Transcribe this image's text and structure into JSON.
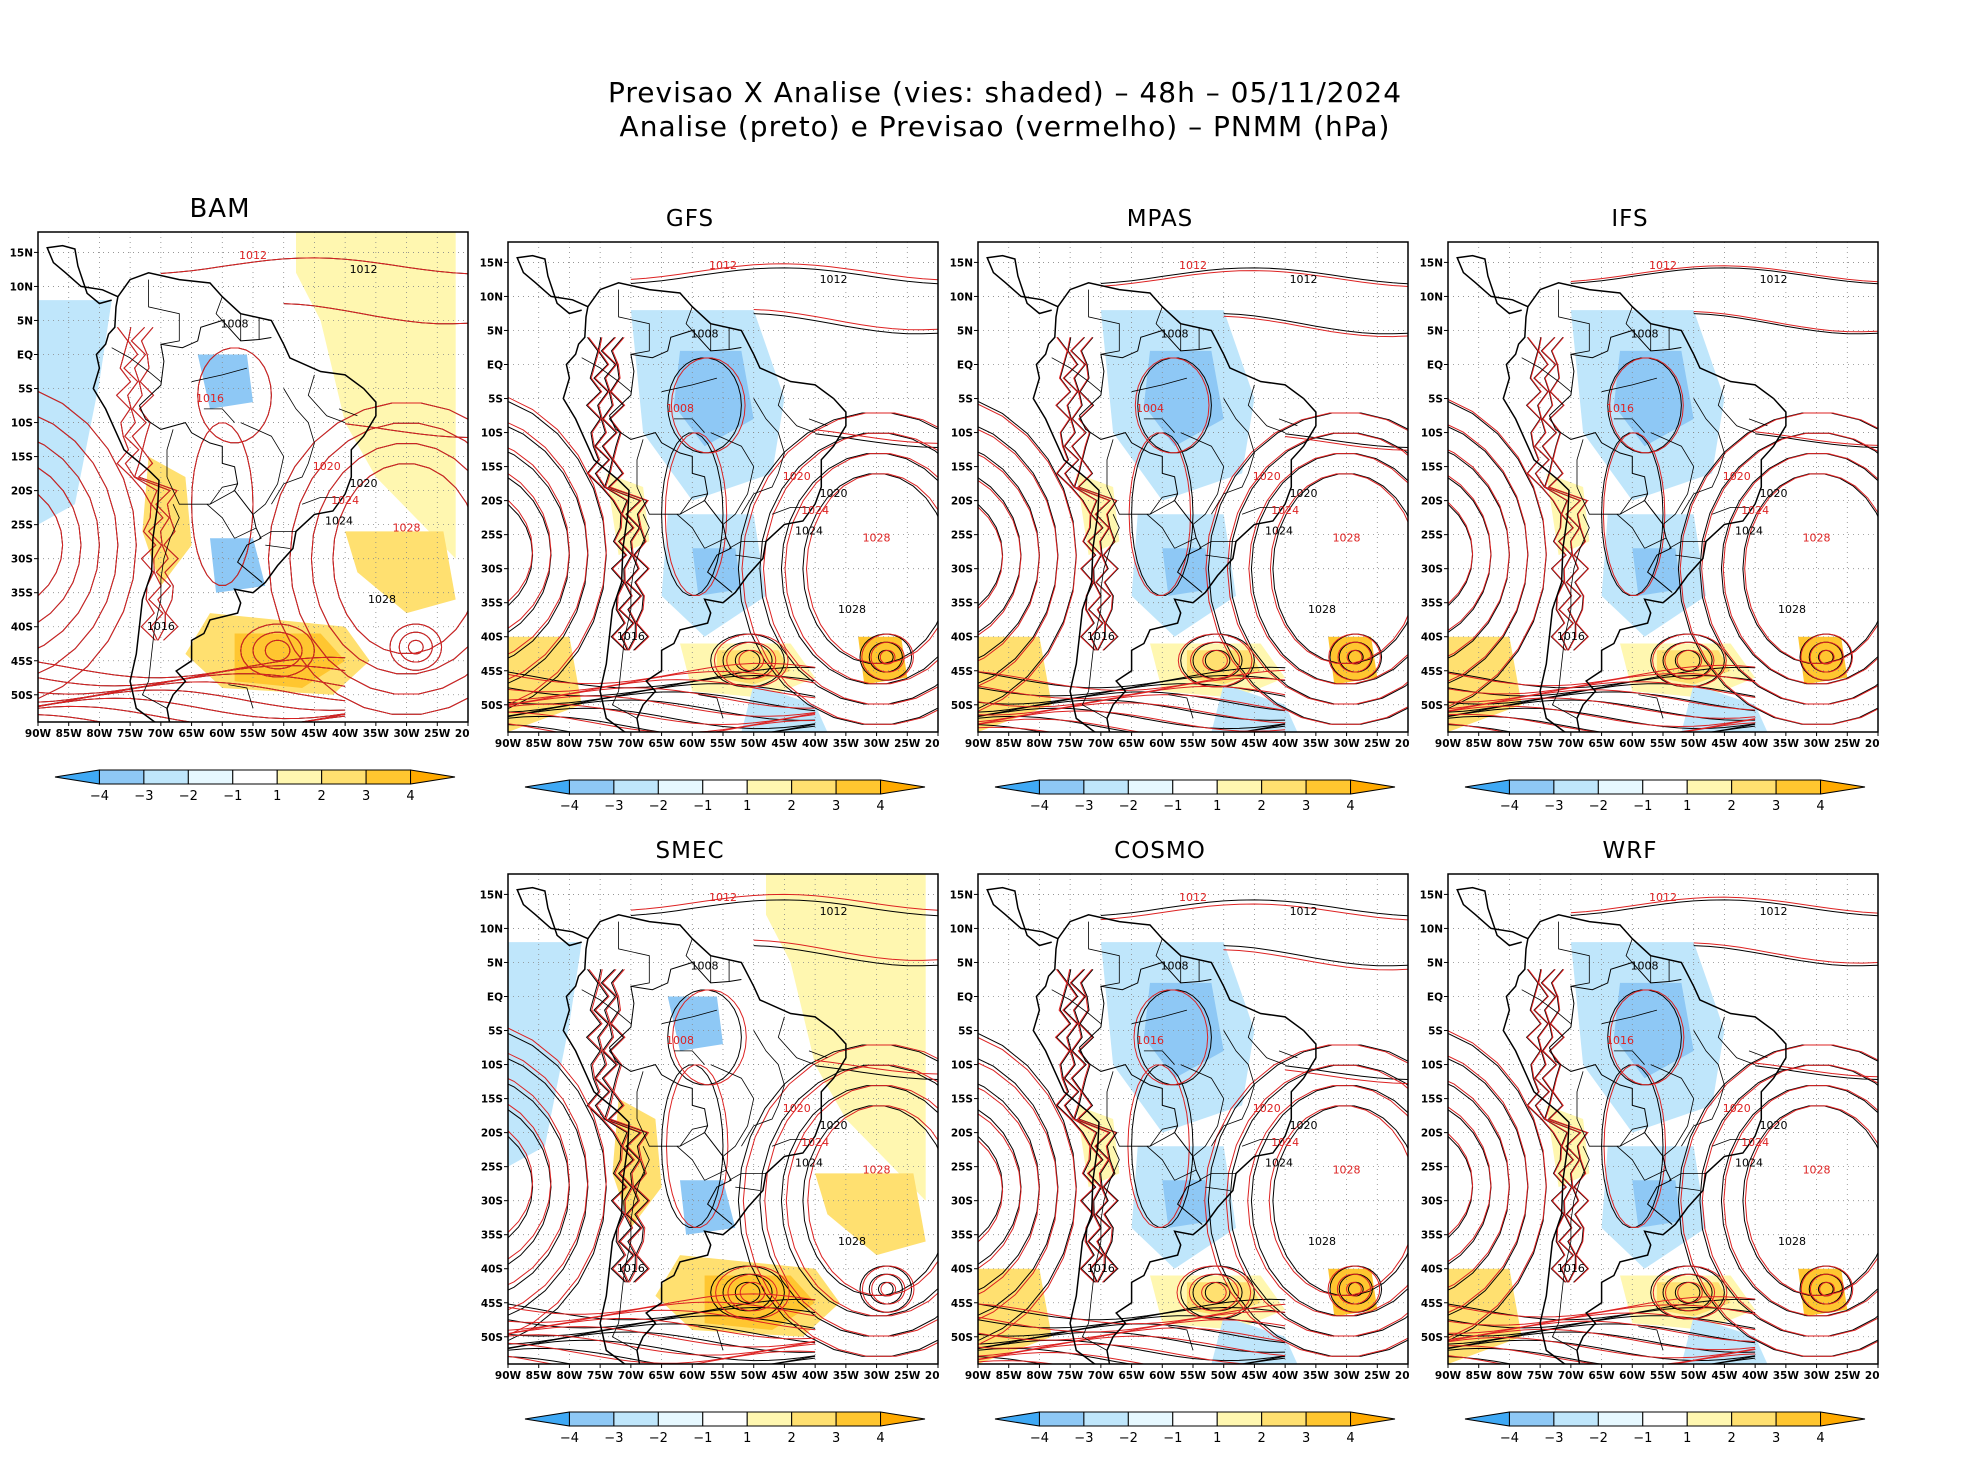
{
  "titles": {
    "line1": "Previsao X Analise (vies: shaded) – 48h – 05/11/2024",
    "line2": "Analise (preto) e Previsao (vermelho) – PNMM (hPa)"
  },
  "axes": {
    "lat_labels": [
      "15N",
      "10N",
      "5N",
      "EQ",
      "5S",
      "10S",
      "15S",
      "20S",
      "25S",
      "30S",
      "35S",
      "40S",
      "45S",
      "50S"
    ],
    "lon_labels": [
      "90W",
      "85W",
      "80W",
      "75W",
      "70W",
      "65W",
      "60W",
      "55W",
      "50W",
      "45W",
      "40W",
      "35W",
      "30W",
      "25W",
      "20W"
    ]
  },
  "colorbar": {
    "labels": [
      "−4",
      "−3",
      "−2",
      "−1",
      "1",
      "2",
      "3",
      "4"
    ],
    "colors": [
      "#3fa9f5",
      "#8ec8f5",
      "#bfe6fb",
      "#e6f8ff",
      "#ffffff",
      "#fff7b0",
      "#ffe070",
      "#ffc630",
      "#ffaa00"
    ]
  },
  "colors": {
    "analysis": "#000000",
    "forecast": "#dd2222",
    "coast": "#000000",
    "grid": "#888888"
  },
  "panels": [
    {
      "id": "bam",
      "title": "BAM",
      "forecast_labels": [
        "1012",
        "1016",
        "1020",
        "1024",
        "1028"
      ],
      "analysis_labels": [
        "1012",
        "1008",
        "1016",
        "1020",
        "1024",
        "1028"
      ],
      "bias": "warm"
    },
    {
      "id": "gfs",
      "title": "GFS",
      "forecast_labels": [
        "1012",
        "1008",
        "1020",
        "1024",
        "1028"
      ],
      "analysis_labels": [
        "1012",
        "1008",
        "1016",
        "1020",
        "1024",
        "1028"
      ],
      "bias": "cool"
    },
    {
      "id": "mpas",
      "title": "MPAS",
      "forecast_labels": [
        "1012",
        "1004",
        "1020",
        "1024",
        "1028"
      ],
      "analysis_labels": [
        "1012",
        "1008",
        "1016",
        "1020",
        "1024",
        "1028"
      ],
      "bias": "cool"
    },
    {
      "id": "ifs",
      "title": "IFS",
      "forecast_labels": [
        "1012",
        "1016",
        "1020",
        "1024",
        "1028"
      ],
      "analysis_labels": [
        "1012",
        "1008",
        "1016",
        "1020",
        "1024",
        "1028"
      ],
      "bias": "cool"
    },
    {
      "id": "smec",
      "title": "SMEC",
      "forecast_labels": [
        "1012",
        "1008",
        "1020",
        "1024",
        "1028"
      ],
      "analysis_labels": [
        "1012",
        "1008",
        "1016",
        "1020",
        "1024",
        "1028"
      ],
      "bias": "warm"
    },
    {
      "id": "cosmo",
      "title": "COSMO",
      "forecast_labels": [
        "1012",
        "1016",
        "1020",
        "1024",
        "1028"
      ],
      "analysis_labels": [
        "1012",
        "1008",
        "1016",
        "1020",
        "1024",
        "1028"
      ],
      "bias": "cool"
    },
    {
      "id": "wrf",
      "title": "WRF",
      "forecast_labels": [
        "1012",
        "1016",
        "1020",
        "1024",
        "1028"
      ],
      "analysis_labels": [
        "1012",
        "1008",
        "1016",
        "1020",
        "1024",
        "1028"
      ],
      "bias": "cool"
    }
  ]
}
